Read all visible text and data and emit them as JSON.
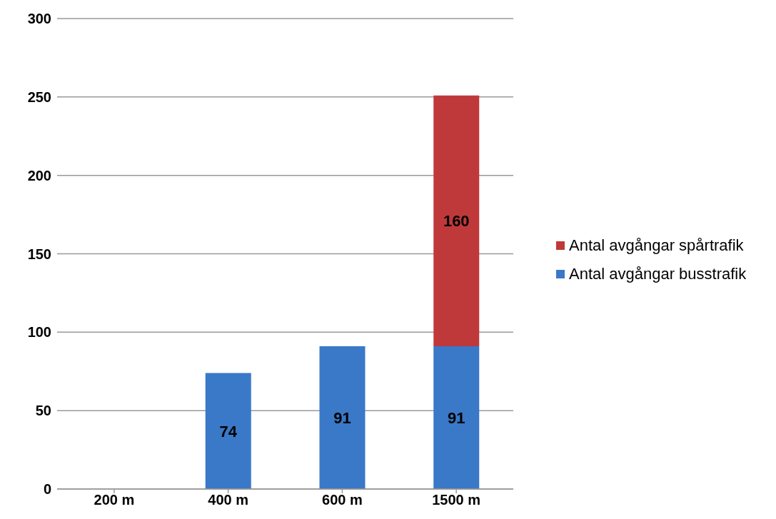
{
  "chart_data": {
    "type": "bar",
    "categories": [
      "200 m",
      "400 m",
      "600 m",
      "1500 m"
    ],
    "series": [
      {
        "name": "Antal avgångar busstrafik",
        "color": "#3a78c8",
        "values": [
          null,
          74,
          91,
          91
        ]
      },
      {
        "name": "Antal avgångar spårtrafik",
        "color": "#c0393a",
        "values": [
          null,
          null,
          null,
          160
        ]
      }
    ],
    "stacked": true,
    "ylim": [
      0,
      300
    ],
    "yticks": [
      0,
      50,
      100,
      150,
      200,
      250,
      300
    ],
    "grid": "y",
    "legend": "right",
    "data_labels": true
  }
}
